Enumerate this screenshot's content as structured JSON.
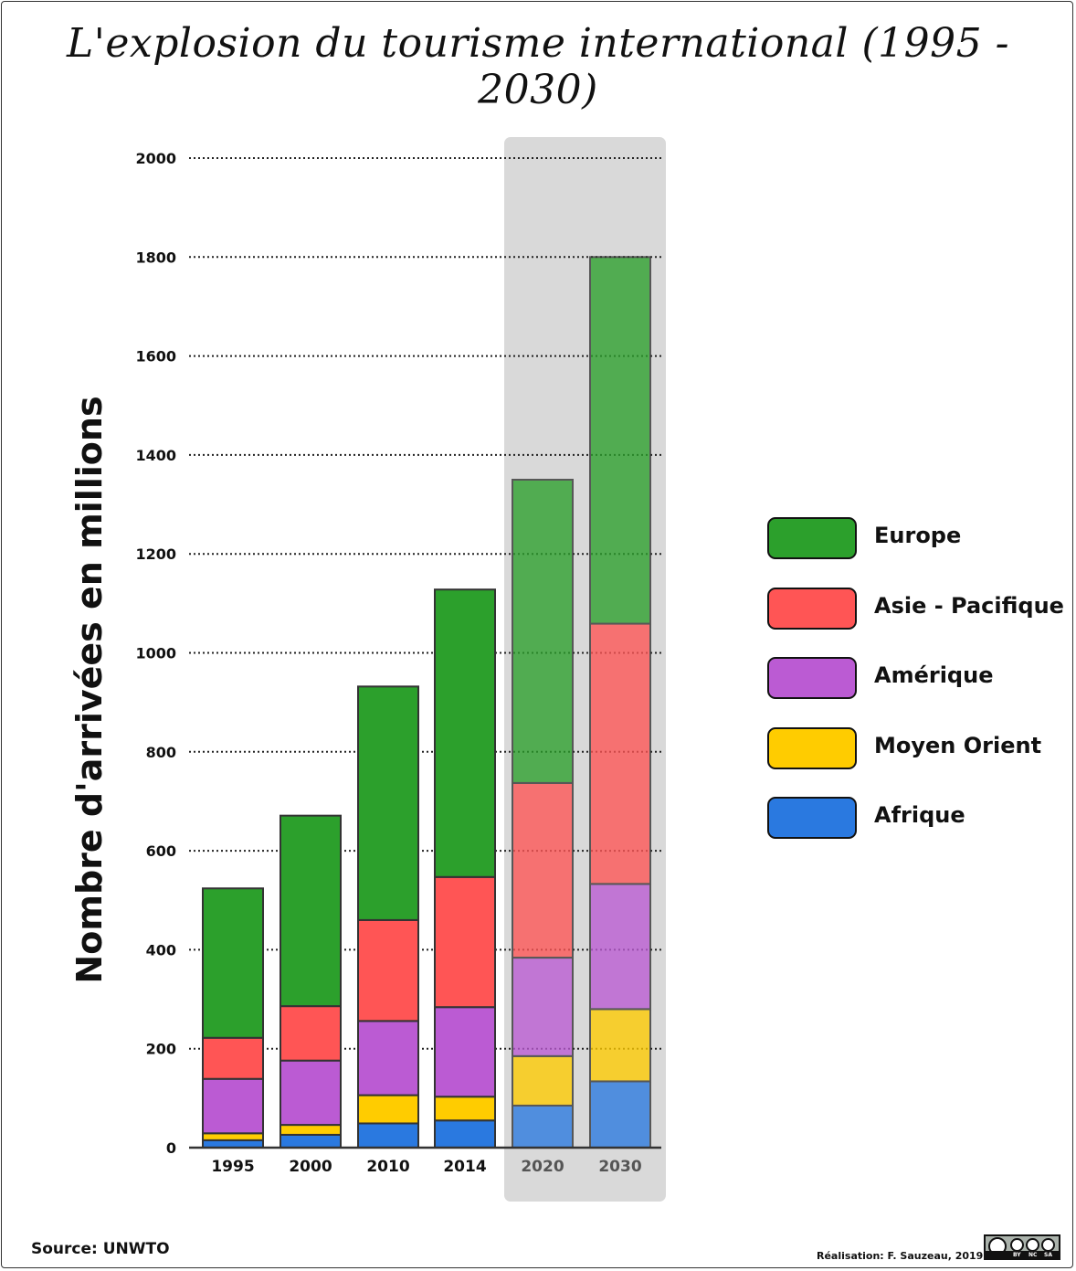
{
  "chart_data": {
    "type": "bar",
    "stacked": true,
    "title": "L'explosion du tourisme international (1995 - 2030)",
    "ylabel": "Nombre d'arrivées en millions",
    "xlabel": "",
    "ylim": [
      0,
      2000
    ],
    "yticks": [
      "0",
      "200",
      "400",
      "600",
      "800",
      "1000",
      "1200",
      "1400",
      "1600",
      "1800",
      "2000"
    ],
    "grid": "dotted horizontal",
    "legend_position": "right",
    "categories": [
      "1995",
      "2000",
      "2010",
      "2014",
      "2020",
      "2030"
    ],
    "projected_categories": [
      "2020",
      "2030"
    ],
    "series": [
      {
        "name": "Afrique",
        "color": "#2a79e0",
        "values": [
          15,
          26,
          49,
          55,
          85,
          134
        ]
      },
      {
        "name": "Moyen Orient",
        "color": "#ffcc00",
        "values": [
          14,
          20,
          57,
          48,
          100,
          146
        ]
      },
      {
        "name": "Amérique",
        "color": "#bb5bd3",
        "values": [
          110,
          130,
          150,
          181,
          199,
          253
        ]
      },
      {
        "name": "Asie - Pacifique",
        "color": "#ff5555",
        "values": [
          83,
          110,
          204,
          263,
          353,
          526
        ]
      },
      {
        "name": "Europe",
        "color": "#2ca02c",
        "values": [
          302,
          385,
          472,
          581,
          613,
          741
        ]
      }
    ]
  },
  "legend": [
    {
      "label": "Europe",
      "color": "#2ca02c"
    },
    {
      "label": "Asie - Pacifique",
      "color": "#ff5555"
    },
    {
      "label": "Amérique",
      "color": "#bb5bd3"
    },
    {
      "label": "Moyen Orient",
      "color": "#ffcc00"
    },
    {
      "label": "Afrique",
      "color": "#2a79e0"
    }
  ],
  "footer": {
    "source": "Source: UNWTO",
    "credit": "Réalisation: F. Sauzeau, 2019",
    "license_labels": [
      "BY",
      "NC",
      "SA"
    ]
  }
}
